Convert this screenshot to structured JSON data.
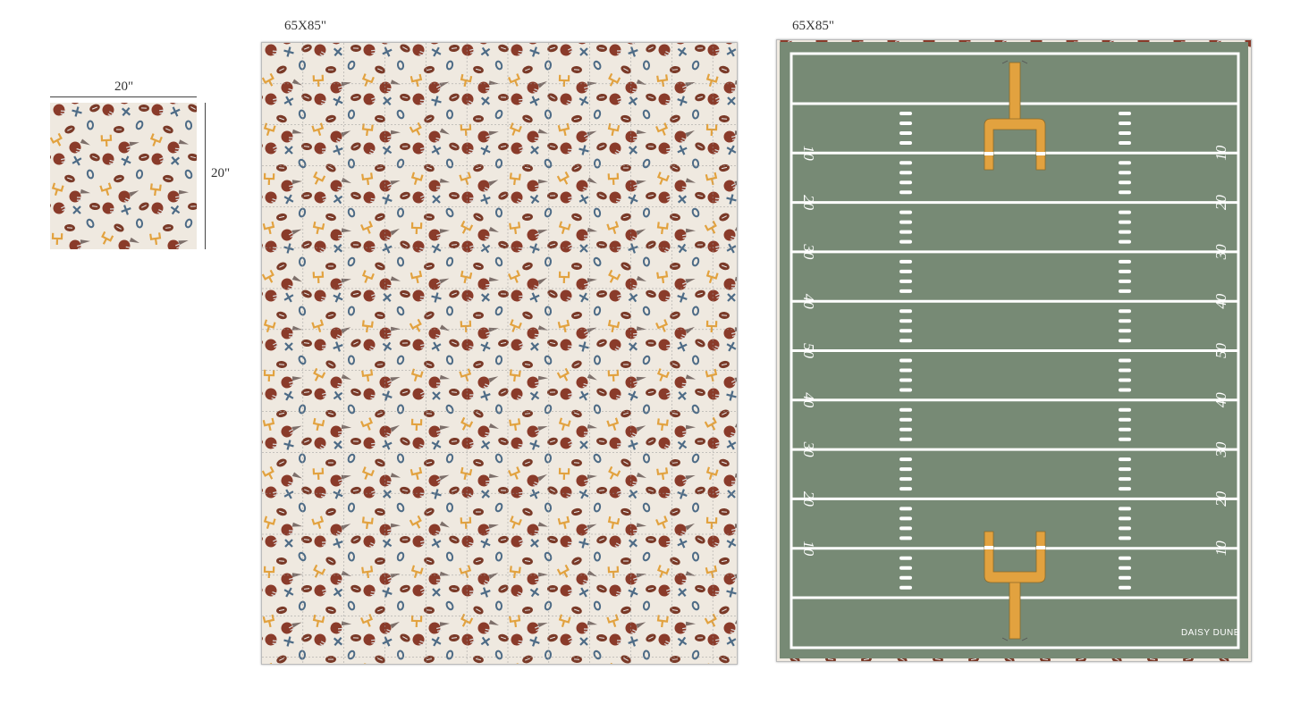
{
  "swatch": {
    "width_label": "20\"",
    "height_label": "20\""
  },
  "quilt": {
    "size_label": "65X85\""
  },
  "field_mat": {
    "size_label": "65X85\"",
    "yard_numbers": [
      "10",
      "20",
      "30",
      "40",
      "50",
      "40",
      "30",
      "20",
      "10"
    ],
    "brand_logo": "DAISY DUNE"
  },
  "colors": {
    "background_cream": "#efe9e0",
    "field_green": "#778a75",
    "goalpost_gold": "#e2a23f",
    "helmet_brown": "#8a3b2a",
    "mark_blue": "#4d6b86",
    "line_white": "#ffffff"
  },
  "icons": [
    "football-icon",
    "helmet-icon",
    "goalpost-icon",
    "x-mark-icon",
    "o-mark-icon",
    "pennant-icon"
  ]
}
